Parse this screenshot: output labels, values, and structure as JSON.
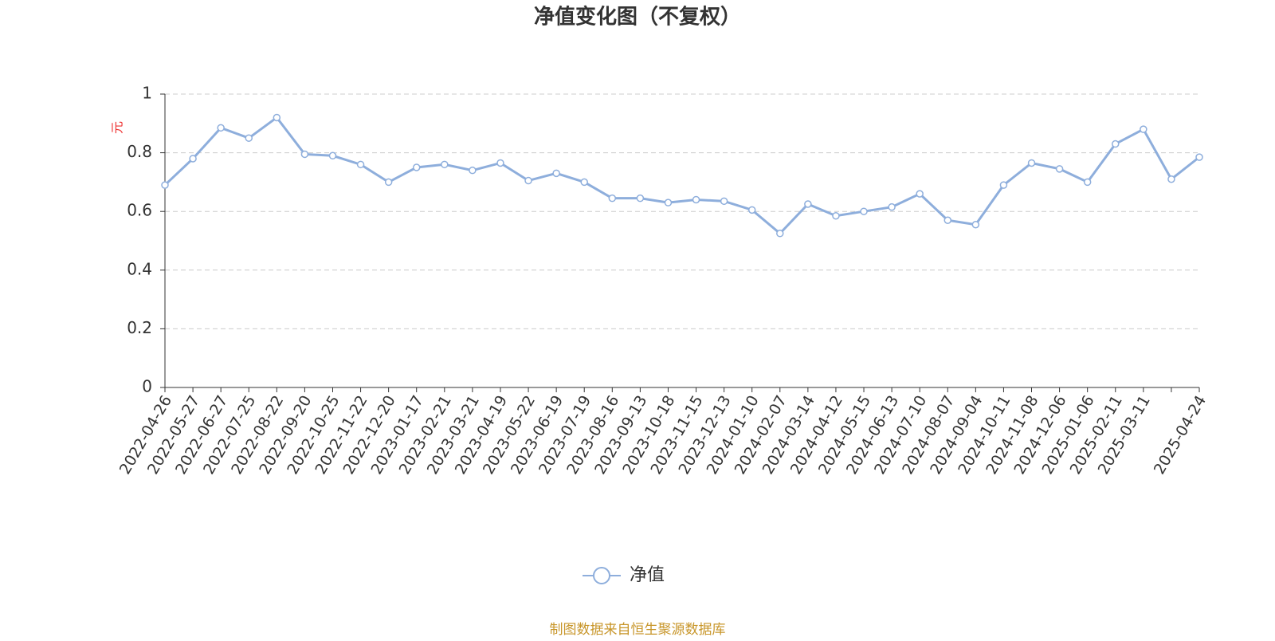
{
  "chart_data": {
    "type": "line",
    "title": "净值变化图（不复权）",
    "y_label": "元",
    "footer": "制图数据来自恒生聚源数据库",
    "categories": [
      "2022-04-26",
      "2022-05-27",
      "2022-06-27",
      "2022-07-25",
      "2022-08-22",
      "2022-09-20",
      "2022-10-25",
      "2022-11-22",
      "2022-12-20",
      "2023-01-17",
      "2023-02-21",
      "2023-03-21",
      "2023-04-19",
      "2023-05-22",
      "2023-06-19",
      "2023-07-19",
      "2023-08-16",
      "2023-09-13",
      "2023-10-18",
      "2023-11-15",
      "2023-12-13",
      "2024-01-10",
      "2024-02-07",
      "2024-03-14",
      "2024-04-12",
      "2024-05-15",
      "2024-06-13",
      "2024-07-10",
      "2024-08-07",
      "2024-09-04",
      "2024-10-11",
      "2024-11-08",
      "2024-12-06",
      "2025-01-06",
      "2025-02-11",
      "2025-03-11",
      null,
      "2025-04-24"
    ],
    "series": [
      {
        "name": "净值",
        "color": "#8eaedc",
        "values": [
          0.69,
          0.78,
          0.885,
          0.85,
          0.92,
          0.795,
          0.79,
          0.76,
          0.7,
          0.75,
          0.76,
          0.74,
          0.765,
          0.705,
          0.73,
          0.7,
          0.645,
          0.645,
          0.63,
          0.64,
          0.635,
          0.605,
          0.525,
          0.625,
          0.585,
          0.6,
          0.615,
          0.66,
          0.57,
          0.555,
          0.69,
          0.765,
          0.745,
          0.7,
          0.83,
          0.88,
          0.71,
          0.785
        ]
      }
    ],
    "ylim": [
      0,
      1
    ],
    "yticks": [
      0,
      0.2,
      0.4,
      0.6,
      0.8,
      1
    ],
    "grid": true
  }
}
